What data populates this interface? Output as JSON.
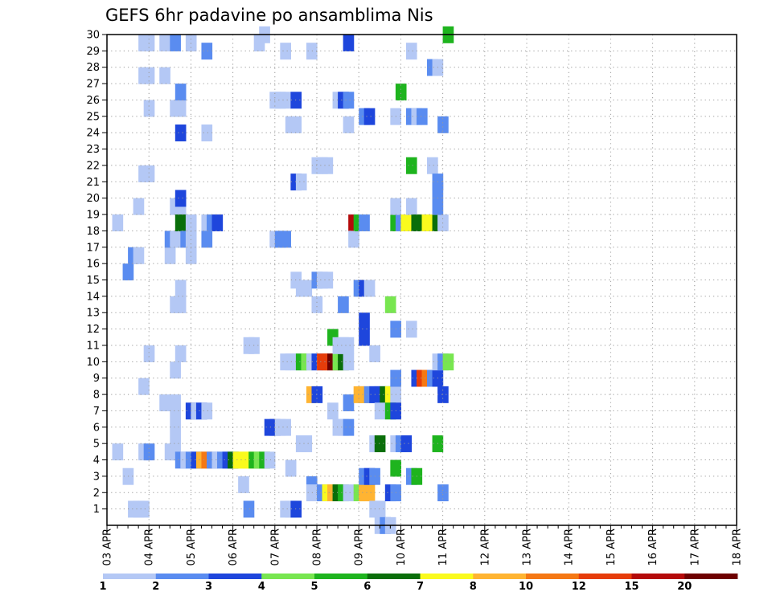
{
  "chart_data": {
    "type": "heatmap",
    "title": "GEFS 6hr padavine po ansamblima Nis",
    "xlabel": "",
    "ylabel": "",
    "x_tick_labels": [
      "03 APR",
      "04 APR",
      "05 APR",
      "06 APR",
      "07 APR",
      "08 APR",
      "09 APR",
      "10 APR",
      "11 APR",
      "12 APR",
      "13 APR",
      "14 APR",
      "15 APR",
      "16 APR",
      "17 APR",
      "18 APR"
    ],
    "y_tick_labels": [
      "1",
      "2",
      "3",
      "4",
      "5",
      "6",
      "7",
      "8",
      "9",
      "10",
      "11",
      "12",
      "13",
      "14",
      "15",
      "16",
      "17",
      "18",
      "19",
      "20",
      "21",
      "22",
      "23",
      "24",
      "25",
      "26",
      "27",
      "28",
      "29",
      "30"
    ],
    "xlim": [
      0,
      60
    ],
    "ylim": [
      0,
      30
    ],
    "grid": true,
    "steps_per_day": 4,
    "colorbar": {
      "levels": [
        "1",
        "2",
        "3",
        "4",
        "5",
        "6",
        "7",
        "8",
        "10",
        "12",
        "15",
        "20"
      ],
      "colors": [
        "#b4c8f5",
        "#5a8cf0",
        "#1e46dc",
        "#78e650",
        "#1eb41e",
        "#0a6e0a",
        "#fafa1e",
        "#ffb432",
        "#f57814",
        "#e63c0a",
        "#b40a0a",
        "#6e0000"
      ]
    },
    "cells": [
      [
        0.5,
        18.5,
        1
      ],
      [
        0.5,
        4.5,
        1
      ],
      [
        1.5,
        3,
        1
      ],
      [
        2,
        1,
        1
      ],
      [
        2.5,
        1,
        1
      ],
      [
        3,
        1,
        1
      ],
      [
        2,
        16.5,
        2
      ],
      [
        1.5,
        15.5,
        2
      ],
      [
        2.5,
        16.5,
        1
      ],
      [
        2.5,
        19.5,
        1
      ],
      [
        3,
        29.5,
        1
      ],
      [
        3.5,
        29.5,
        1
      ],
      [
        3,
        27.5,
        1
      ],
      [
        3.5,
        27.5,
        1
      ],
      [
        3.5,
        25.5,
        1
      ],
      [
        3,
        21.5,
        1
      ],
      [
        3.5,
        21.5,
        1
      ],
      [
        3,
        8.5,
        1
      ],
      [
        3.5,
        10.5,
        1
      ],
      [
        3,
        4.5,
        1
      ],
      [
        3.5,
        4.5,
        2
      ],
      [
        5,
        29.5,
        1
      ],
      [
        5.5,
        29.5,
        1
      ],
      [
        5,
        27.5,
        1
      ],
      [
        5,
        7.5,
        1
      ],
      [
        5.5,
        16.5,
        1
      ],
      [
        5.5,
        4.5,
        1
      ],
      [
        6,
        4.5,
        1
      ],
      [
        5.5,
        17.5,
        2
      ],
      [
        6,
        29.5,
        2
      ],
      [
        6,
        25.5,
        1
      ],
      [
        6.5,
        25.5,
        1
      ],
      [
        6,
        19.5,
        1
      ],
      [
        6.5,
        19.5,
        1
      ],
      [
        6.5,
        20,
        3
      ],
      [
        6,
        13.5,
        1
      ],
      [
        6.5,
        13.5,
        1
      ],
      [
        6.5,
        14.5,
        1
      ],
      [
        6,
        17.5,
        1
      ],
      [
        6.5,
        17.5,
        1
      ],
      [
        6,
        7.5,
        1
      ],
      [
        6,
        6.5,
        1
      ],
      [
        6,
        5.5,
        1
      ],
      [
        6,
        9.5,
        1
      ],
      [
        6.5,
        26.5,
        2
      ],
      [
        6.5,
        24,
        3
      ],
      [
        6.5,
        18.5,
        6
      ],
      [
        6.5,
        10.5,
        1
      ],
      [
        7,
        17.5,
        2
      ],
      [
        7.5,
        18.5,
        1
      ],
      [
        7.5,
        17.5,
        1
      ],
      [
        7.5,
        16.5,
        1
      ],
      [
        7.5,
        29.5,
        1
      ],
      [
        6.5,
        4,
        2
      ],
      [
        7,
        4,
        1
      ],
      [
        7.5,
        4,
        2
      ],
      [
        8,
        4,
        3
      ],
      [
        8.5,
        4,
        8
      ],
      [
        9,
        4,
        9
      ],
      [
        9.5,
        4,
        2
      ],
      [
        10,
        4,
        1
      ],
      [
        10.5,
        4,
        2
      ],
      [
        11,
        4,
        3
      ],
      [
        11.5,
        4,
        6
      ],
      [
        12,
        4,
        7
      ],
      [
        12.5,
        4,
        7
      ],
      [
        13,
        4,
        7
      ],
      [
        13.5,
        4,
        5
      ],
      [
        14,
        4,
        4
      ],
      [
        14.5,
        4,
        5
      ],
      [
        15,
        4,
        1
      ],
      [
        7.5,
        7,
        3
      ],
      [
        8,
        7,
        1
      ],
      [
        8.5,
        7,
        3
      ],
      [
        9,
        7,
        1
      ],
      [
        9,
        18.5,
        1
      ],
      [
        9,
        17.5,
        2
      ],
      [
        9.5,
        18.5,
        2
      ],
      [
        10,
        18.5,
        3
      ],
      [
        9,
        24,
        1
      ],
      [
        9,
        29,
        2
      ],
      [
        13,
        11,
        1
      ],
      [
        13.5,
        11,
        1
      ],
      [
        12.5,
        2.5,
        1
      ],
      [
        13,
        1,
        2
      ],
      [
        14,
        29.5,
        1
      ],
      [
        14.5,
        30,
        1
      ],
      [
        15,
        6,
        3
      ],
      [
        15.5,
        6,
        3
      ],
      [
        16,
        6,
        1
      ],
      [
        16.5,
        6,
        1
      ],
      [
        15.5,
        26,
        1
      ],
      [
        16,
        26,
        1
      ],
      [
        16.5,
        26,
        1
      ],
      [
        15.5,
        17.5,
        1
      ],
      [
        16,
        17.5,
        2
      ],
      [
        16.5,
        17.5,
        2
      ],
      [
        16.5,
        29,
        1
      ],
      [
        16.5,
        1,
        1
      ],
      [
        17,
        1,
        1
      ],
      [
        17.5,
        1,
        3
      ],
      [
        16.5,
        10,
        1
      ],
      [
        17,
        10,
        1
      ],
      [
        17.5,
        10,
        1
      ],
      [
        18,
        10,
        5
      ],
      [
        18.5,
        10,
        4
      ],
      [
        19,
        10,
        1
      ],
      [
        19.5,
        10,
        3
      ],
      [
        20,
        10,
        10
      ],
      [
        20.5,
        10,
        10
      ],
      [
        21,
        10,
        12
      ],
      [
        21.5,
        10,
        4
      ],
      [
        22,
        10,
        6
      ],
      [
        22.5,
        10,
        1
      ],
      [
        17,
        3.5,
        1
      ],
      [
        17.5,
        26,
        3
      ],
      [
        17,
        24.5,
        1
      ],
      [
        17.5,
        24.5,
        1
      ],
      [
        17.5,
        21,
        3
      ],
      [
        18,
        21,
        1
      ],
      [
        17.5,
        15,
        1
      ],
      [
        18,
        14.5,
        1
      ],
      [
        18.5,
        14.5,
        1
      ],
      [
        18,
        5,
        1
      ],
      [
        18.5,
        5,
        1
      ],
      [
        19,
        29,
        1
      ],
      [
        19,
        8,
        8
      ],
      [
        19.5,
        8,
        3
      ],
      [
        19,
        2.5,
        2
      ],
      [
        19,
        2,
        1
      ],
      [
        19.5,
        22,
        1
      ],
      [
        20,
        22,
        1
      ],
      [
        20.5,
        22,
        1
      ],
      [
        19.5,
        15,
        2
      ],
      [
        20,
        15,
        1
      ],
      [
        20.5,
        15,
        1
      ],
      [
        19.5,
        13.5,
        1
      ],
      [
        20,
        2,
        2
      ],
      [
        20.5,
        2,
        7
      ],
      [
        21,
        2,
        8
      ],
      [
        21.5,
        2,
        6
      ],
      [
        22,
        2,
        5
      ],
      [
        22.5,
        2,
        1
      ],
      [
        21,
        7,
        1
      ],
      [
        21,
        11.5,
        5
      ],
      [
        21.5,
        6,
        1
      ],
      [
        22,
        6,
        1
      ],
      [
        22.5,
        6,
        2
      ],
      [
        22.5,
        7.5,
        2
      ],
      [
        21.5,
        26,
        1
      ],
      [
        22,
        26,
        3
      ],
      [
        22.5,
        26,
        2
      ],
      [
        21.5,
        11,
        1
      ],
      [
        22,
        11,
        1
      ],
      [
        22.5,
        11,
        1
      ],
      [
        22,
        13.5,
        2
      ],
      [
        22.5,
        29.5,
        3
      ],
      [
        22.5,
        24.5,
        1
      ],
      [
        23,
        18.5,
        11
      ],
      [
        23,
        17.5,
        1
      ],
      [
        23.5,
        18.5,
        5
      ],
      [
        24,
        18.5,
        2
      ],
      [
        23.5,
        2,
        4
      ],
      [
        24,
        2,
        8
      ],
      [
        24.5,
        2,
        8
      ],
      [
        23.5,
        8,
        8
      ],
      [
        24,
        8,
        8
      ],
      [
        24.5,
        8,
        2
      ],
      [
        25,
        8,
        3
      ],
      [
        25.5,
        8,
        3
      ],
      [
        26,
        8,
        6
      ],
      [
        26.5,
        8,
        7
      ],
      [
        27,
        8,
        1
      ],
      [
        23.5,
        14.5,
        2
      ],
      [
        24,
        14.5,
        3
      ],
      [
        24.5,
        14.5,
        1
      ],
      [
        24,
        12.5,
        3
      ],
      [
        24,
        11.5,
        3
      ],
      [
        24,
        25,
        2
      ],
      [
        24.5,
        25,
        3
      ],
      [
        24,
        3,
        2
      ],
      [
        24.5,
        3,
        3
      ],
      [
        25,
        3,
        2
      ],
      [
        25,
        5,
        1
      ],
      [
        25.5,
        5,
        6
      ],
      [
        25,
        1,
        1
      ],
      [
        25.5,
        1,
        1
      ],
      [
        25.5,
        0,
        1
      ],
      [
        26,
        0,
        2
      ],
      [
        26.5,
        0,
        1
      ],
      [
        25,
        10.5,
        1
      ],
      [
        25.5,
        7,
        1
      ],
      [
        27,
        25,
        1
      ],
      [
        27.5,
        26.5,
        5
      ],
      [
        26.5,
        7,
        5
      ],
      [
        27,
        7,
        3
      ],
      [
        26.5,
        13.5,
        4
      ],
      [
        26.5,
        2,
        3
      ],
      [
        27,
        2,
        2
      ],
      [
        27,
        18.5,
        5
      ],
      [
        27.5,
        18.5,
        2
      ],
      [
        28,
        18.5,
        7
      ],
      [
        27,
        19.5,
        1
      ],
      [
        27,
        12,
        2
      ],
      [
        27,
        9,
        2
      ],
      [
        27,
        5,
        1
      ],
      [
        27.5,
        5,
        2
      ],
      [
        28,
        5,
        3
      ],
      [
        27,
        3.5,
        5
      ],
      [
        28.5,
        3,
        2
      ],
      [
        29,
        3,
        5
      ],
      [
        28.5,
        29,
        1
      ],
      [
        28.5,
        25,
        2
      ],
      [
        29,
        25,
        1
      ],
      [
        29.5,
        25,
        2
      ],
      [
        28.5,
        22,
        5
      ],
      [
        28.5,
        19.5,
        1
      ],
      [
        28.5,
        12,
        1
      ],
      [
        29,
        18.5,
        6
      ],
      [
        29.5,
        18.5,
        6
      ],
      [
        30,
        18.5,
        7
      ],
      [
        30.5,
        18.5,
        7
      ],
      [
        31,
        18.5,
        6
      ],
      [
        31.5,
        18.5,
        1
      ],
      [
        29,
        9,
        3
      ],
      [
        29.5,
        9,
        10
      ],
      [
        30,
        9,
        9
      ],
      [
        30.5,
        9,
        2
      ],
      [
        31,
        9,
        3
      ],
      [
        30.5,
        28,
        2
      ],
      [
        31,
        28,
        1
      ],
      [
        30.5,
        22,
        1
      ],
      [
        31,
        20.5,
        2
      ],
      [
        31,
        21,
        2
      ],
      [
        31,
        19.5,
        2
      ],
      [
        31,
        10,
        1
      ],
      [
        31.5,
        10,
        2
      ],
      [
        32,
        10,
        4
      ],
      [
        31.5,
        24.5,
        2
      ],
      [
        31.5,
        2,
        2
      ],
      [
        31.5,
        8,
        3
      ],
      [
        31,
        5,
        5
      ],
      [
        32,
        30,
        5
      ]
    ]
  }
}
